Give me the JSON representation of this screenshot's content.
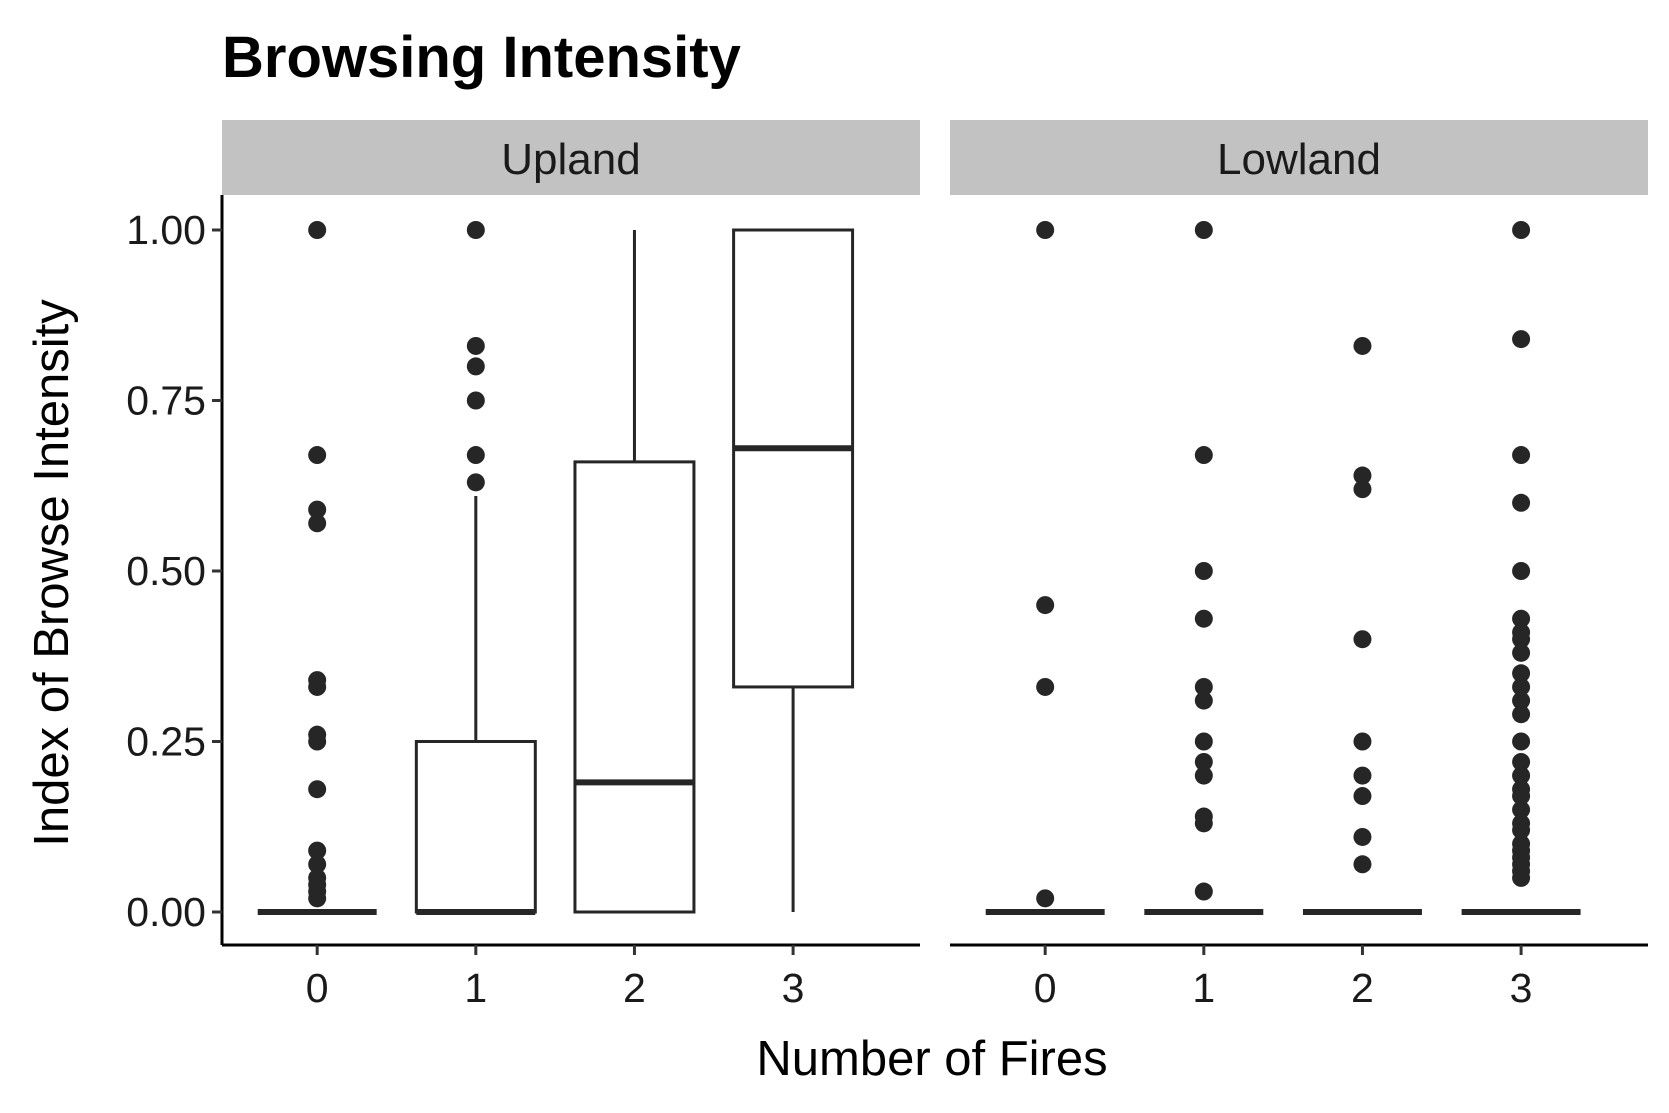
{
  "chart_data": {
    "type": "boxplot",
    "title": "Browsing Intensity",
    "xlabel": "Number of Fires",
    "ylabel": "Index of Browse Intensity",
    "ylim": [
      -0.05,
      1.05
    ],
    "y_ticks": [
      "0.00",
      "0.25",
      "0.50",
      "0.75",
      "1.00"
    ],
    "y_tick_values": [
      0,
      0.25,
      0.5,
      0.75,
      1.0
    ],
    "categories": [
      "0",
      "1",
      "2",
      "3"
    ],
    "grid": false,
    "facets": [
      {
        "name": "Upland",
        "boxes": [
          {
            "category": "0",
            "lower_whisker": 0,
            "q1": 0,
            "median": 0,
            "q3": 0,
            "upper_whisker": 0,
            "outliers": [
              1.0,
              0.67,
              0.59,
              0.57,
              0.34,
              0.33,
              0.26,
              0.25,
              0.18,
              0.09,
              0.07,
              0.05,
              0.04,
              0.03,
              0.02
            ]
          },
          {
            "category": "1",
            "lower_whisker": 0,
            "q1": 0,
            "median": 0,
            "q3": 0.25,
            "upper_whisker": 0.61,
            "outliers": [
              1.0,
              0.83,
              0.8,
              0.75,
              0.67,
              0.63
            ]
          },
          {
            "category": "2",
            "lower_whisker": 0,
            "q1": 0,
            "median": 0.19,
            "q3": 0.66,
            "upper_whisker": 1.0,
            "outliers": []
          },
          {
            "category": "3",
            "lower_whisker": 0,
            "q1": 0.33,
            "median": 0.68,
            "q3": 1.0,
            "upper_whisker": 1.0,
            "outliers": []
          }
        ]
      },
      {
        "name": "Lowland",
        "boxes": [
          {
            "category": "0",
            "lower_whisker": 0,
            "q1": 0,
            "median": 0,
            "q3": 0,
            "upper_whisker": 0,
            "outliers": [
              1.0,
              0.45,
              0.33,
              0.02
            ]
          },
          {
            "category": "1",
            "lower_whisker": 0,
            "q1": 0,
            "median": 0,
            "q3": 0,
            "upper_whisker": 0,
            "outliers": [
              1.0,
              0.67,
              0.5,
              0.43,
              0.33,
              0.31,
              0.25,
              0.22,
              0.2,
              0.14,
              0.13,
              0.03
            ]
          },
          {
            "category": "2",
            "lower_whisker": 0,
            "q1": 0,
            "median": 0,
            "q3": 0,
            "upper_whisker": 0,
            "outliers": [
              0.83,
              0.64,
              0.62,
              0.4,
              0.25,
              0.2,
              0.17,
              0.11,
              0.07
            ]
          },
          {
            "category": "3",
            "lower_whisker": 0,
            "q1": 0,
            "median": 0,
            "q3": 0,
            "upper_whisker": 0,
            "outliers": [
              1.0,
              0.84,
              0.67,
              0.6,
              0.5,
              0.43,
              0.41,
              0.4,
              0.38,
              0.35,
              0.33,
              0.31,
              0.29,
              0.25,
              0.22,
              0.2,
              0.18,
              0.17,
              0.15,
              0.13,
              0.12,
              0.1,
              0.09,
              0.08,
              0.07,
              0.06,
              0.05
            ]
          }
        ]
      }
    ]
  }
}
